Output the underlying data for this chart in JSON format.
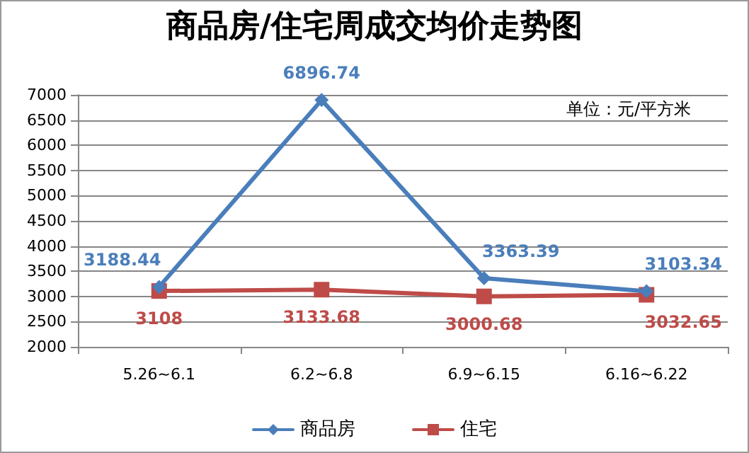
{
  "chart_data": {
    "type": "line",
    "title": "商品房/住宅周成交均价走势图",
    "annotations": [
      "单位：元/平方米"
    ],
    "categories": [
      "5.26~6.1",
      "6.2~6.8",
      "6.9~6.15",
      "6.16~6.22"
    ],
    "series": [
      {
        "name": "商品房",
        "color": "#4a7ebb",
        "marker": "diamond",
        "values": [
          3188.44,
          6896.74,
          3363.39,
          3103.34
        ]
      },
      {
        "name": "住宅",
        "color": "#be4b48",
        "marker": "square",
        "values": [
          3108,
          3133.68,
          3000.68,
          3032.65
        ]
      }
    ],
    "ylim": [
      2000,
      7000
    ],
    "yticks": [
      2000,
      2500,
      3000,
      3500,
      4000,
      4500,
      5000,
      5500,
      6000,
      6500,
      7000
    ],
    "grid": "y",
    "legend": "bottom",
    "data_labels": true
  }
}
